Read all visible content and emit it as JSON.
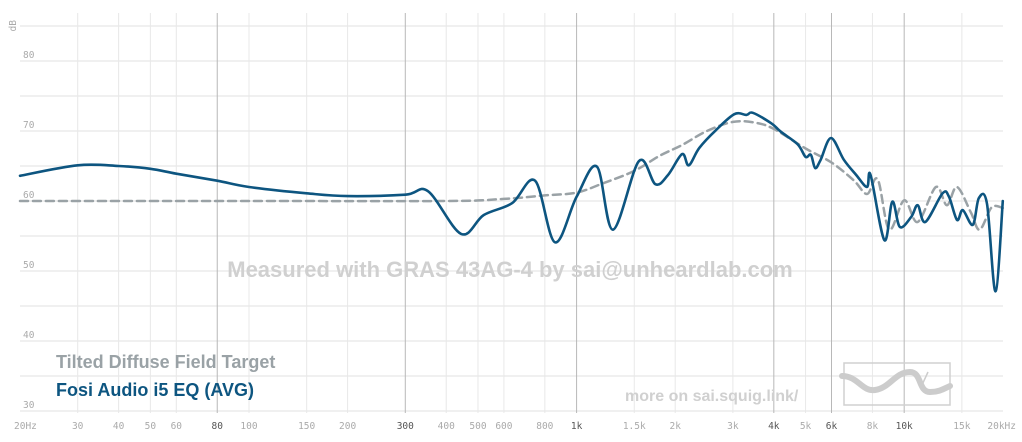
{
  "chart_data": {
    "type": "line",
    "ylabel": "dB",
    "xscale": "log",
    "xlim": [
      20,
      20000
    ],
    "ylim": [
      28,
      86
    ],
    "grid": true,
    "legend_placement": "bottom-left",
    "y_ticks": [
      30,
      40,
      50,
      60,
      70,
      80
    ],
    "x_ticks": [
      {
        "f": 20,
        "label": "20Hz",
        "major": false
      },
      {
        "f": 30,
        "label": "30",
        "major": false
      },
      {
        "f": 40,
        "label": "40",
        "major": false
      },
      {
        "f": 50,
        "label": "50",
        "major": false
      },
      {
        "f": 60,
        "label": "60",
        "major": false
      },
      {
        "f": 80,
        "label": "80",
        "major": true
      },
      {
        "f": 100,
        "label": "100",
        "major": false
      },
      {
        "f": 150,
        "label": "150",
        "major": false
      },
      {
        "f": 200,
        "label": "200",
        "major": false
      },
      {
        "f": 300,
        "label": "300",
        "major": true
      },
      {
        "f": 400,
        "label": "400",
        "major": false
      },
      {
        "f": 500,
        "label": "500",
        "major": false
      },
      {
        "f": 600,
        "label": "600",
        "major": false
      },
      {
        "f": 800,
        "label": "800",
        "major": false
      },
      {
        "f": 1000,
        "label": "1k",
        "major": true
      },
      {
        "f": 1500,
        "label": "1.5k",
        "major": false
      },
      {
        "f": 2000,
        "label": "2k",
        "major": false
      },
      {
        "f": 3000,
        "label": "3k",
        "major": false
      },
      {
        "f": 4000,
        "label": "4k",
        "major": true
      },
      {
        "f": 5000,
        "label": "5k",
        "major": false
      },
      {
        "f": 6000,
        "label": "6k",
        "major": true
      },
      {
        "f": 8000,
        "label": "8k",
        "major": false
      },
      {
        "f": 10000,
        "label": "10k",
        "major": true
      },
      {
        "f": 15000,
        "label": "15k",
        "major": false
      },
      {
        "f": 20000,
        "label": "20kHz",
        "major": false
      }
    ],
    "series": [
      {
        "name": "Tilted Diffuse Field Target",
        "color": "#9aa2a6",
        "dashed": true,
        "x": [
          20,
          100,
          400,
          600,
          800,
          1000,
          1200,
          1500,
          1800,
          2100,
          2500,
          3000,
          3500,
          4000,
          5000,
          6000,
          7000,
          7700,
          8300,
          9000,
          10000,
          11000,
          12500,
          13500,
          14500,
          16000,
          17000,
          18500,
          20000
        ],
        "y": [
          60,
          60,
          60,
          60.3,
          60.8,
          61.2,
          62.5,
          64.3,
          66.5,
          68,
          70,
          71.3,
          71.2,
          70.3,
          67.5,
          65.5,
          63,
          61,
          63.1,
          55.9,
          60.1,
          57,
          62,
          59.4,
          62,
          58.3,
          55.9,
          59.1,
          59
        ]
      },
      {
        "name": "Fosi Audio i5 EQ (AVG)",
        "color": "#0d5580",
        "dashed": false,
        "x": [
          20,
          30,
          40,
          50,
          60,
          80,
          100,
          150,
          200,
          300,
          352,
          444,
          521,
          636,
          747,
          859,
          1000,
          1154,
          1292,
          1550,
          1740,
          1900,
          2100,
          2200,
          2370,
          2660,
          3030,
          3300,
          3450,
          3930,
          4200,
          4730,
          5000,
          5190,
          5350,
          5560,
          5980,
          6540,
          7140,
          7700,
          7900,
          8700,
          9200,
          9700,
          10500,
          11000,
          11600,
          13100,
          13700,
          14500,
          15100,
          16200,
          16900,
          17900,
          19000,
          20000
        ],
        "y": [
          63.6,
          65.1,
          65.0,
          64.6,
          63.9,
          62.9,
          62.0,
          61.1,
          60.7,
          60.9,
          61.4,
          55.3,
          58.0,
          59.7,
          62.9,
          54.1,
          60.6,
          64.9,
          55.9,
          65.7,
          62.4,
          63.7,
          66.7,
          65.1,
          67.6,
          70.1,
          72.4,
          72.3,
          72.6,
          71.1,
          69.9,
          68.1,
          66.3,
          66.6,
          64.7,
          65.9,
          69.0,
          65.9,
          63.7,
          62.0,
          63.7,
          54.4,
          59.9,
          56.3,
          57.7,
          59.4,
          57.0,
          61.1,
          60.6,
          57.3,
          58.7,
          56.6,
          60.4,
          59.6,
          47.1,
          60.0
        ]
      }
    ],
    "annotations": {
      "watermark": "Measured with GRAS 43AG-4 by sai@unheardlab.com",
      "link": "more on sai.squig.link/"
    }
  }
}
